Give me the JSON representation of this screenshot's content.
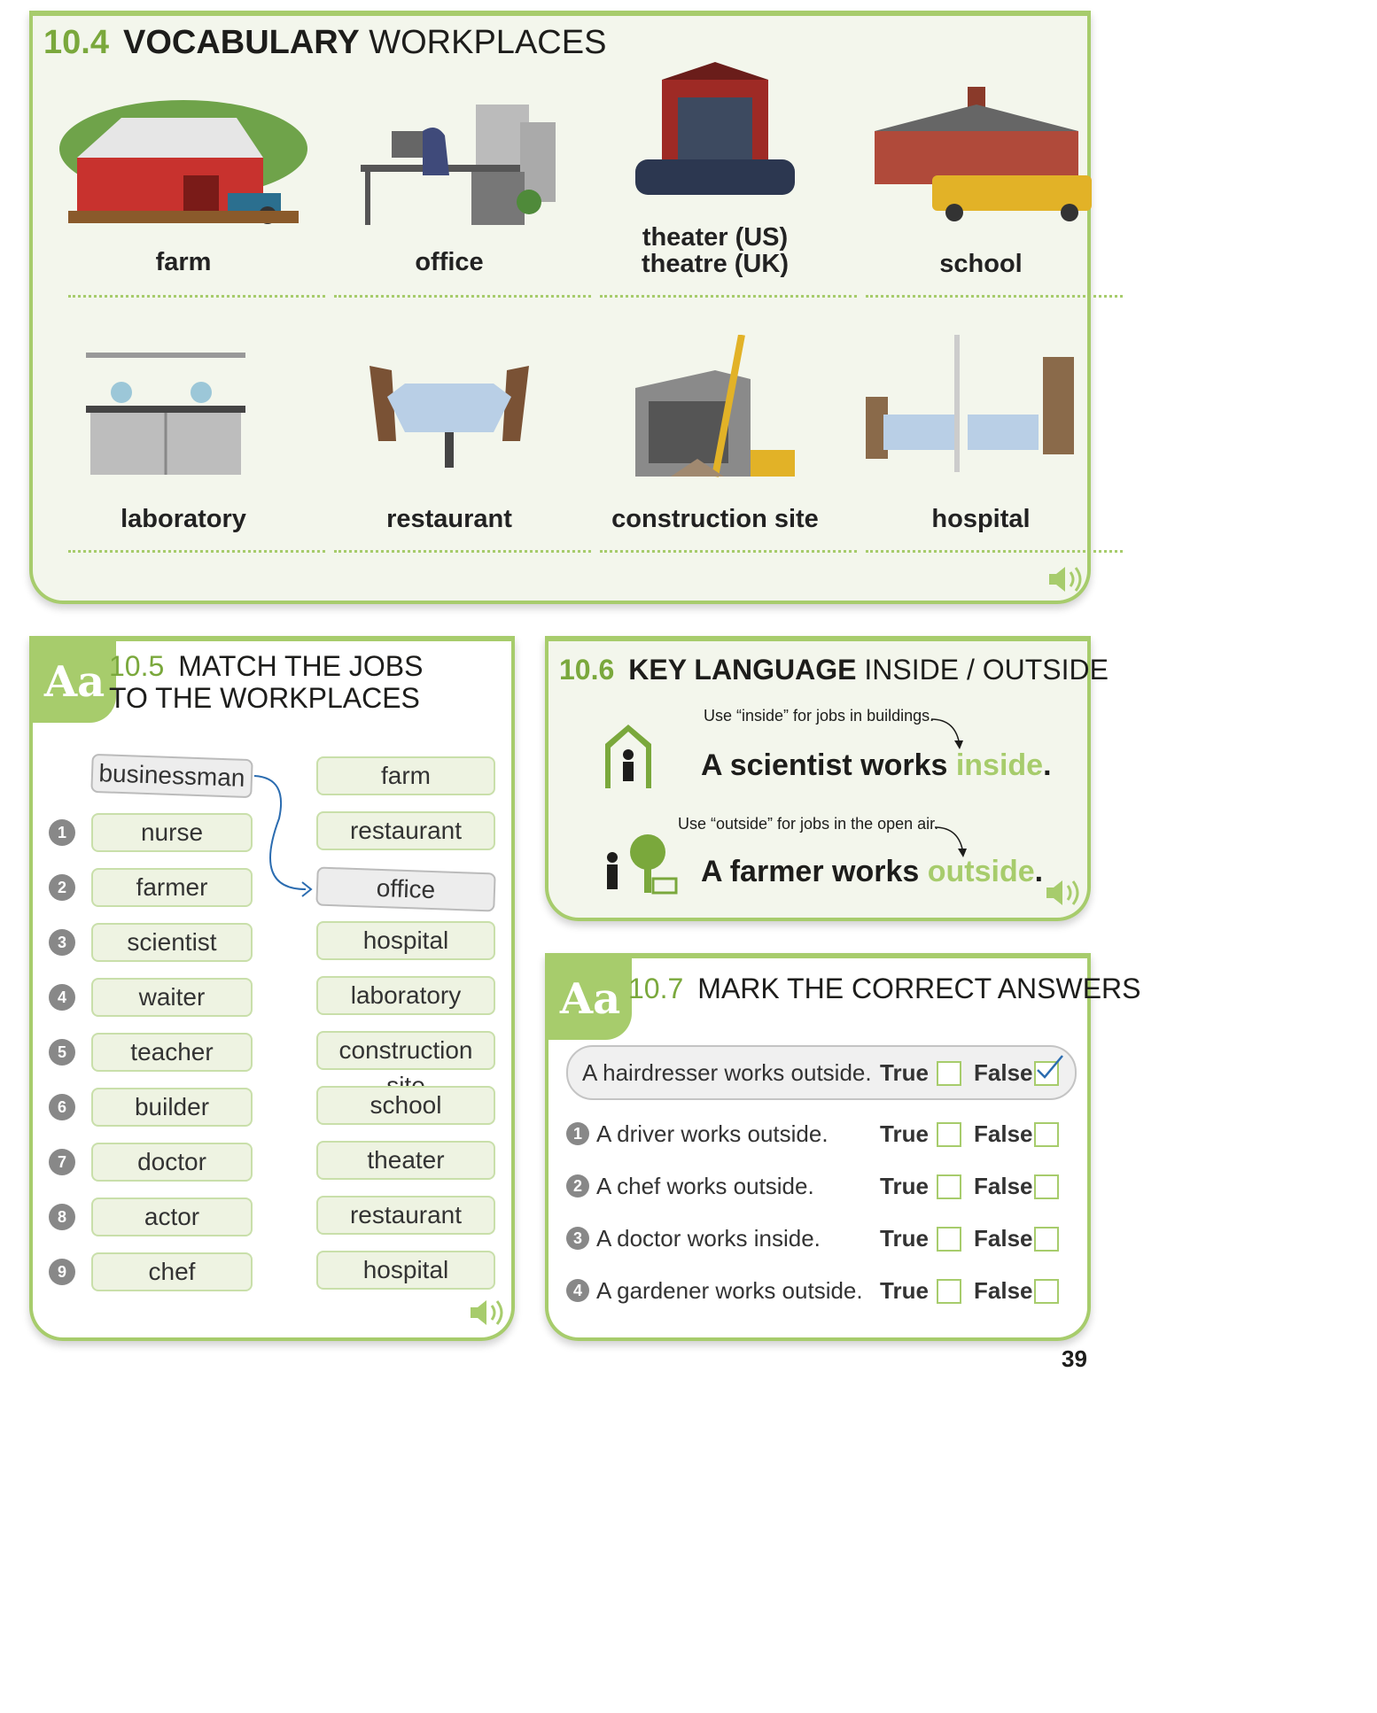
{
  "vocab": {
    "number": "10.4",
    "title_bold": "VOCABULARY",
    "title_rest": "WORKPLACES",
    "items": [
      {
        "label": "farm"
      },
      {
        "label": "office"
      },
      {
        "label": "theater (US)",
        "label2": "theatre (UK)"
      },
      {
        "label": "school"
      },
      {
        "label": "laboratory"
      },
      {
        "label": "restaurant"
      },
      {
        "label": "construction site"
      },
      {
        "label": "hospital"
      }
    ]
  },
  "match": {
    "badge": "Aa",
    "number": "10.5",
    "title_line1": "MATCH THE JOBS",
    "title_line2": "TO THE WORKPLACES",
    "example_job": "businessman",
    "example_place": "office",
    "jobs": [
      "nurse",
      "farmer",
      "scientist",
      "waiter",
      "teacher",
      "builder",
      "doctor",
      "actor",
      "chef"
    ],
    "numbers": [
      "1",
      "2",
      "3",
      "4",
      "5",
      "6",
      "7",
      "8",
      "9"
    ],
    "places": [
      "farm",
      "restaurant",
      "office",
      "hospital",
      "laboratory",
      "construction site",
      "school",
      "theater",
      "restaurant",
      "hospital"
    ]
  },
  "key": {
    "number": "10.6",
    "title_bold": "KEY LANGUAGE",
    "title_rest": "INSIDE / OUTSIDE",
    "note1": "Use “inside” for jobs in buildings.",
    "sentence1_start": "A scientist works ",
    "sentence1_highlight": "inside",
    "sentence1_end": ".",
    "note2": "Use “outside” for jobs in the open air.",
    "sentence2_start": "A farmer works ",
    "sentence2_highlight": "outside",
    "sentence2_end": "."
  },
  "mark": {
    "badge": "Aa",
    "number": "10.7",
    "title": "MARK THE CORRECT ANSWERS",
    "true_label": "True",
    "false_label": "False",
    "example": {
      "text": "A hairdresser works outside.",
      "answer": "False"
    },
    "items": [
      {
        "num": "1",
        "text": "A driver works outside."
      },
      {
        "num": "2",
        "text": "A chef works outside."
      },
      {
        "num": "3",
        "text": "A doctor works inside."
      },
      {
        "num": "4",
        "text": "A gardener works outside."
      }
    ]
  },
  "page_number": "39",
  "colors": {
    "accent": "#a7cc6c",
    "accent_text": "#7aa83c",
    "panel_bg": "#f3f6ec",
    "line_blue": "#2b6cb0"
  }
}
